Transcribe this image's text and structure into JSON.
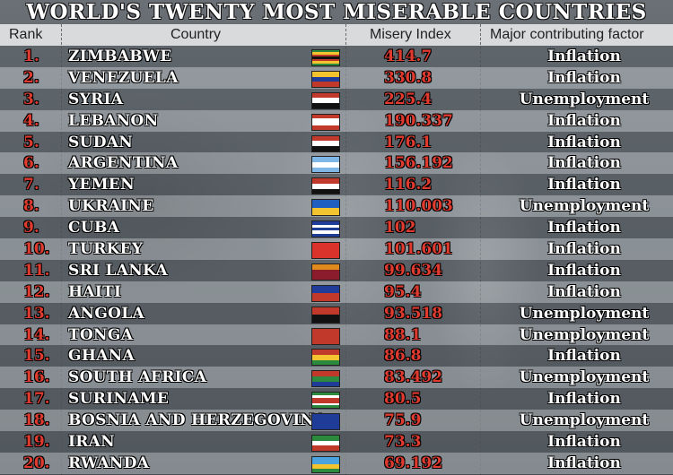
{
  "title": "WORLD'S TWENTY MOST MISERABLE COUNTRIES",
  "headers": {
    "rank": "Rank",
    "country": "Country",
    "index": "Misery Index",
    "factor": "Major contributing factor"
  },
  "rows": [
    {
      "rank": "1.",
      "country": "ZIMBABWE",
      "index": "414.7",
      "factor": "Inflation",
      "flag": [
        "#2b8a3e",
        "#f4c430",
        "#c0392b",
        "#111",
        "#c0392b",
        "#f4c430",
        "#2b8a3e"
      ]
    },
    {
      "rank": "2.",
      "country": "VENEZUELA",
      "index": "330.8",
      "factor": "Inflation",
      "flag": [
        "#f4c430",
        "#1f3c99",
        "#c0392b"
      ]
    },
    {
      "rank": "3.",
      "country": "SYRIA",
      "index": "225.4",
      "factor": "Unemployment",
      "flag": [
        "#c0392b",
        "#ffffff",
        "#111"
      ]
    },
    {
      "rank": "4.",
      "country": "LEBANON",
      "index": "190.337",
      "factor": "Inflation",
      "flag": [
        "#c0392b",
        "#ffffff",
        "#ffffff",
        "#c0392b"
      ]
    },
    {
      "rank": "5.",
      "country": "SUDAN",
      "index": "176.1",
      "factor": "Inflation",
      "flag": [
        "#c0392b",
        "#ffffff",
        "#111"
      ]
    },
    {
      "rank": "6.",
      "country": "ARGENTINA",
      "index": "156.192",
      "factor": "Inflation",
      "flag": [
        "#7fb7e6",
        "#ffffff",
        "#7fb7e6"
      ]
    },
    {
      "rank": "7.",
      "country": "YEMEN",
      "index": "116.2",
      "factor": "Inflation",
      "flag": [
        "#c0392b",
        "#ffffff",
        "#111"
      ]
    },
    {
      "rank": "8.",
      "country": "UKRAINE",
      "index": "110.003",
      "factor": "Unemployment",
      "flag": [
        "#1f5fbf",
        "#f4c430"
      ]
    },
    {
      "rank": "9.",
      "country": "CUBA",
      "index": "102",
      "factor": "Inflation",
      "flag": [
        "#1f3c99",
        "#ffffff",
        "#1f3c99",
        "#ffffff",
        "#1f3c99"
      ]
    },
    {
      "rank": "10.",
      "country": "TURKEY",
      "index": "101.601",
      "factor": "Inflation",
      "flag": [
        "#d9332b"
      ]
    },
    {
      "rank": "11.",
      "country": "SRI LANKA",
      "index": "99.634",
      "factor": "Inflation",
      "flag": [
        "#e08a1e",
        "#8a1c2b",
        "#8a1c2b"
      ]
    },
    {
      "rank": "12.",
      "country": "HAITI",
      "index": "95.4",
      "factor": "Inflation",
      "flag": [
        "#1f3c99",
        "#c0392b"
      ]
    },
    {
      "rank": "13.",
      "country": "ANGOLA",
      "index": "93.518",
      "factor": "Unemployment",
      "flag": [
        "#c0392b",
        "#111"
      ]
    },
    {
      "rank": "14.",
      "country": "TONGA",
      "index": "88.1",
      "factor": "Unemployment",
      "flag": [
        "#c0392b"
      ]
    },
    {
      "rank": "15.",
      "country": "GHANA",
      "index": "86.8",
      "factor": "Inflation",
      "flag": [
        "#c0392b",
        "#f4c430",
        "#2b8a3e"
      ]
    },
    {
      "rank": "16.",
      "country": "SOUTH AFRICA",
      "index": "83.492",
      "factor": "Unemployment",
      "flag": [
        "#c0392b",
        "#2b8a3e",
        "#1f3c99"
      ]
    },
    {
      "rank": "17.",
      "country": "SURINAME",
      "index": "80.5",
      "factor": "Inflation",
      "flag": [
        "#2b8a3e",
        "#ffffff",
        "#c0392b",
        "#c0392b",
        "#ffffff",
        "#2b8a3e"
      ]
    },
    {
      "rank": "18.",
      "country": "BOSNIA AND HERZEGOVINA",
      "index": "75.9",
      "factor": "Unemployment",
      "flag": [
        "#1f3c99"
      ]
    },
    {
      "rank": "19.",
      "country": "IRAN",
      "index": "73.3",
      "factor": "Inflation",
      "flag": [
        "#2b8a3e",
        "#ffffff",
        "#c0392b"
      ]
    },
    {
      "rank": "20.",
      "country": "RWANDA",
      "index": "69.192",
      "factor": "Inflation",
      "flag": [
        "#4aa3df",
        "#4aa3df",
        "#f4c430",
        "#2b8a3e"
      ]
    }
  ]
}
